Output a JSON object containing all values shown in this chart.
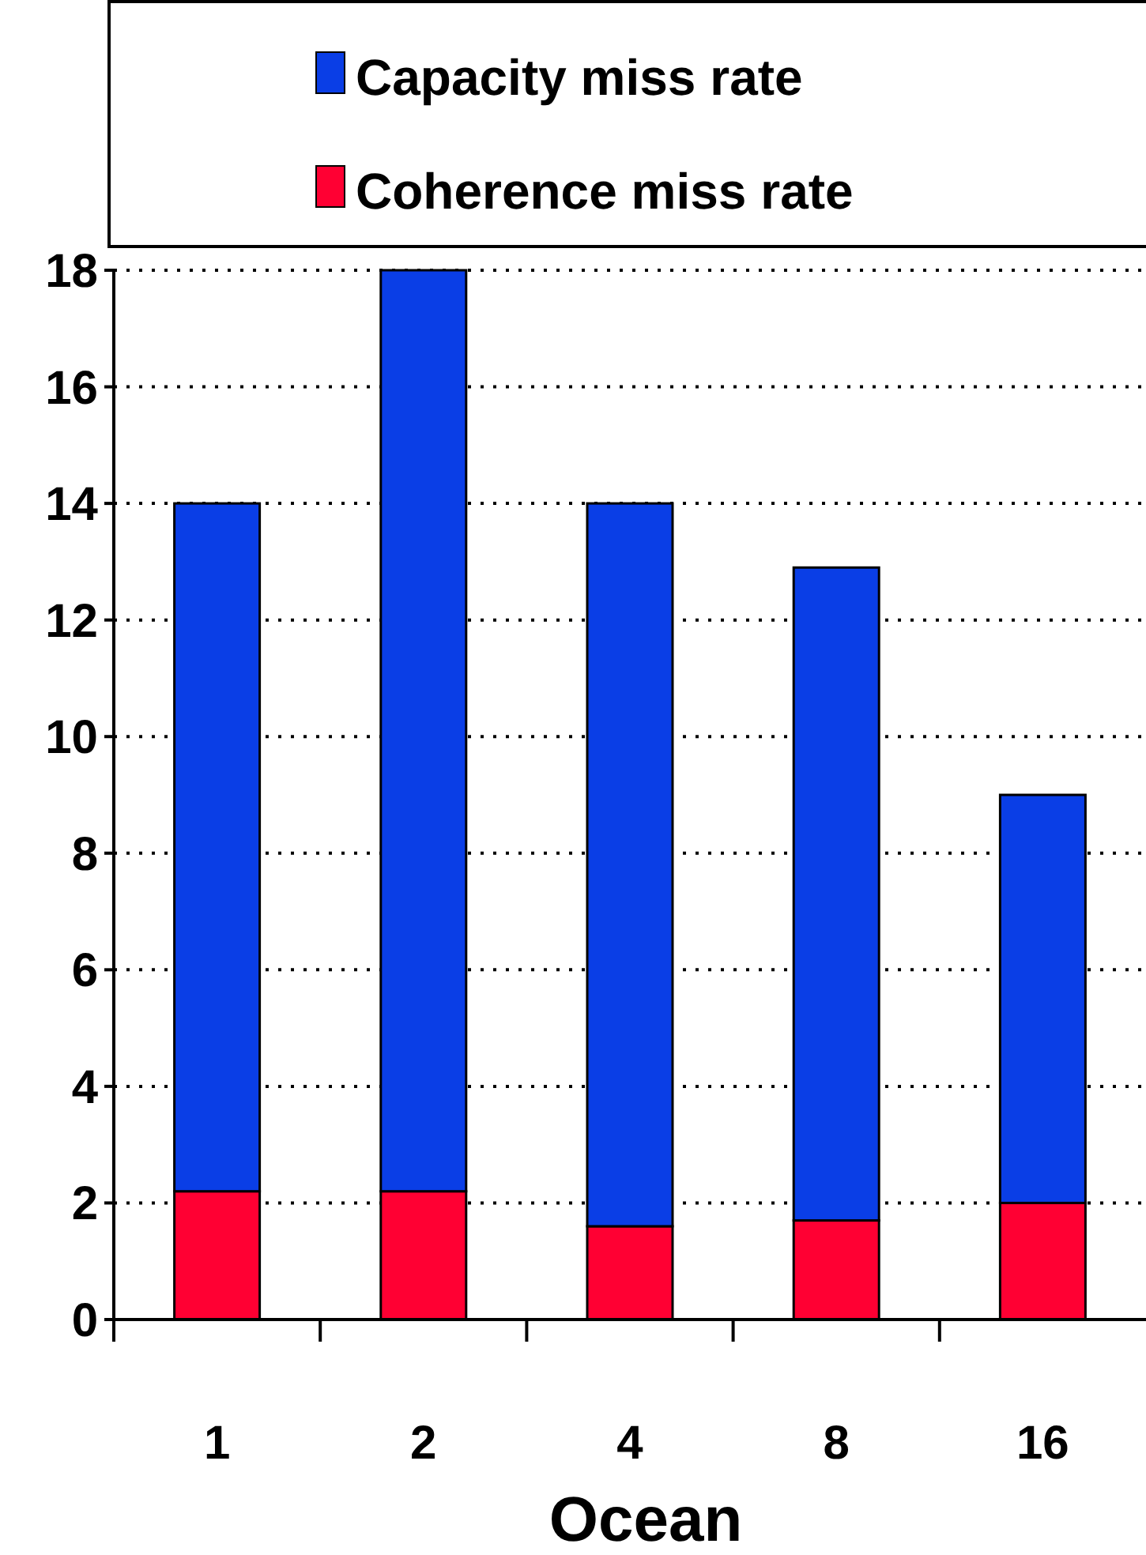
{
  "chart_data": {
    "type": "bar",
    "stacked": true,
    "xlabel": "Ocean",
    "categories": [
      "1",
      "2",
      "4",
      "8",
      "16"
    ],
    "series": [
      {
        "name": "Coherence miss rate",
        "color": "#ff0033",
        "values": [
          2.2,
          2.2,
          1.6,
          1.7,
          2.0
        ]
      },
      {
        "name": "Capacity miss rate",
        "color": "#0a3ee6",
        "values": [
          11.8,
          15.8,
          12.4,
          11.2,
          7.0
        ]
      }
    ],
    "ylim": [
      0,
      18
    ],
    "yticks": [
      0,
      2,
      4,
      6,
      8,
      10,
      12,
      14,
      16,
      18
    ],
    "grid": "y",
    "legend": "top"
  }
}
